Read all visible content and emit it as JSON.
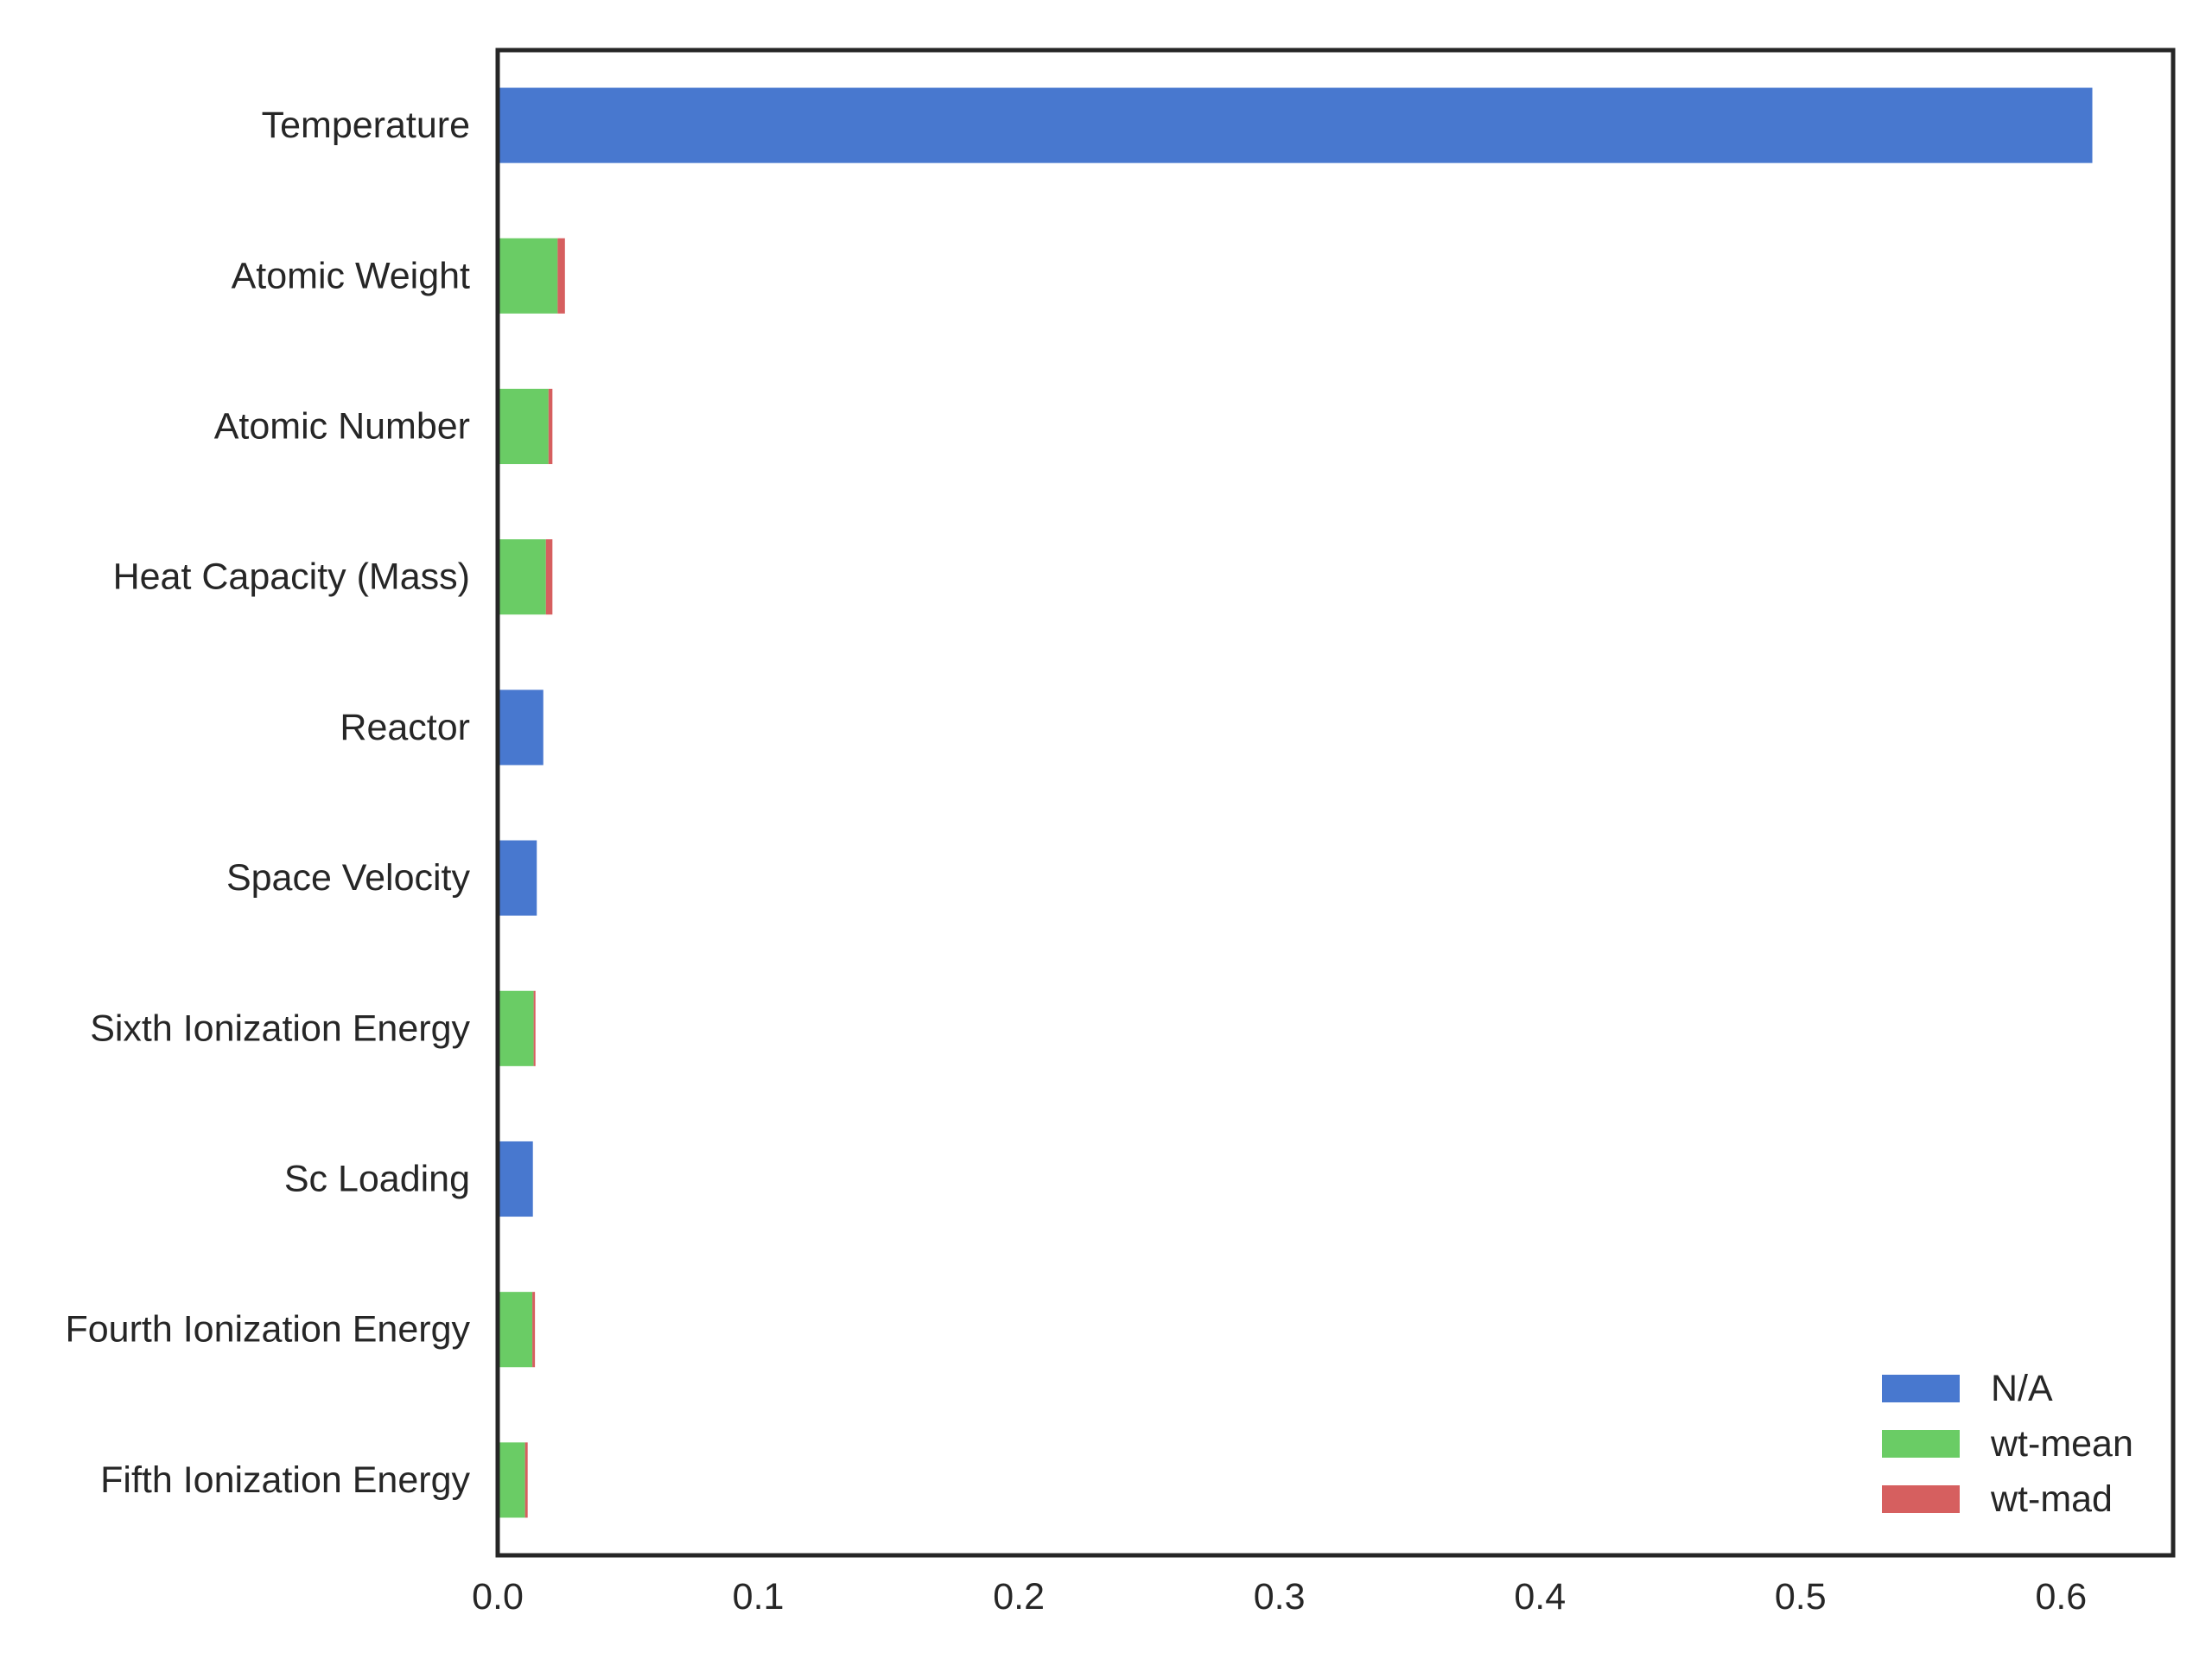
{
  "chart_data": {
    "type": "bar",
    "orientation": "horizontal",
    "stacked": true,
    "title": "",
    "xlabel": "",
    "ylabel": "",
    "xlim": [
      0,
      0.643
    ],
    "x_ticks": [
      0.0,
      0.1,
      0.2,
      0.3,
      0.4,
      0.5,
      0.6
    ],
    "x_tick_labels": [
      "0.0",
      "0.1",
      "0.2",
      "0.3",
      "0.4",
      "0.5",
      "0.6"
    ],
    "grid": false,
    "legend_position": "bottom-right",
    "categories": [
      "Temperature",
      "Atomic Weight",
      "Atomic Number",
      "Heat Capacity (Mass)",
      "Reactor",
      "Space Velocity",
      "Sixth Ionization Energy",
      "Sc Loading",
      "Fourth Ionization Energy",
      "Fifth Ionization Energy"
    ],
    "series": [
      {
        "name": "N/A",
        "color": "#4878cf",
        "values": [
          0.612,
          0,
          0,
          0,
          0.0175,
          0.015,
          0,
          0.0135,
          0,
          0
        ]
      },
      {
        "name": "wt-mean",
        "color": "#6acc65",
        "values": [
          0,
          0.023,
          0.0195,
          0.0185,
          0,
          0,
          0.0138,
          0,
          0.0133,
          0.0105
        ]
      },
      {
        "name": "wt-mad",
        "color": "#d65f5f",
        "values": [
          0,
          0.0028,
          0.0015,
          0.0025,
          0,
          0,
          0.0007,
          0,
          0.001,
          0.001
        ]
      }
    ]
  }
}
